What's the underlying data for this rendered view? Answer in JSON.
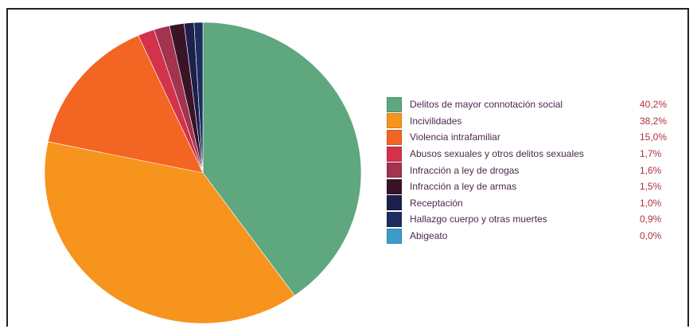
{
  "chart_data": {
    "type": "pie",
    "title": "",
    "legend_position": "right",
    "slices": [
      {
        "label": "Delitos de mayor connotación social",
        "value": 40.2,
        "value_label": "40,2%",
        "color": "#5fa77f"
      },
      {
        "label": "Incivilidades",
        "value": 38.2,
        "value_label": "38,2%",
        "color": "#f7941e"
      },
      {
        "label": "Violencia intrafamiliar",
        "value": 15.0,
        "value_label": "15,0%",
        "color": "#f26522"
      },
      {
        "label": "Abusos sexuales y otros delitos sexuales",
        "value": 1.7,
        "value_label": "1,7%",
        "color": "#d2334a"
      },
      {
        "label": "Infracción a ley de drogas",
        "value": 1.6,
        "value_label": "1,6%",
        "color": "#a3334f"
      },
      {
        "label": "Infracción a ley de armas",
        "value": 1.5,
        "value_label": "1,5%",
        "color": "#3a1426"
      },
      {
        "label": "Receptación",
        "value": 1.0,
        "value_label": "1,0%",
        "color": "#1d1f4d"
      },
      {
        "label": "Hallazgo cuerpo y otras muertes",
        "value": 0.9,
        "value_label": "0,9%",
        "color": "#1b2d5e"
      },
      {
        "label": "Abigeato",
        "value": 0.0,
        "value_label": "0,0%",
        "color": "#3a9cc8"
      }
    ]
  }
}
